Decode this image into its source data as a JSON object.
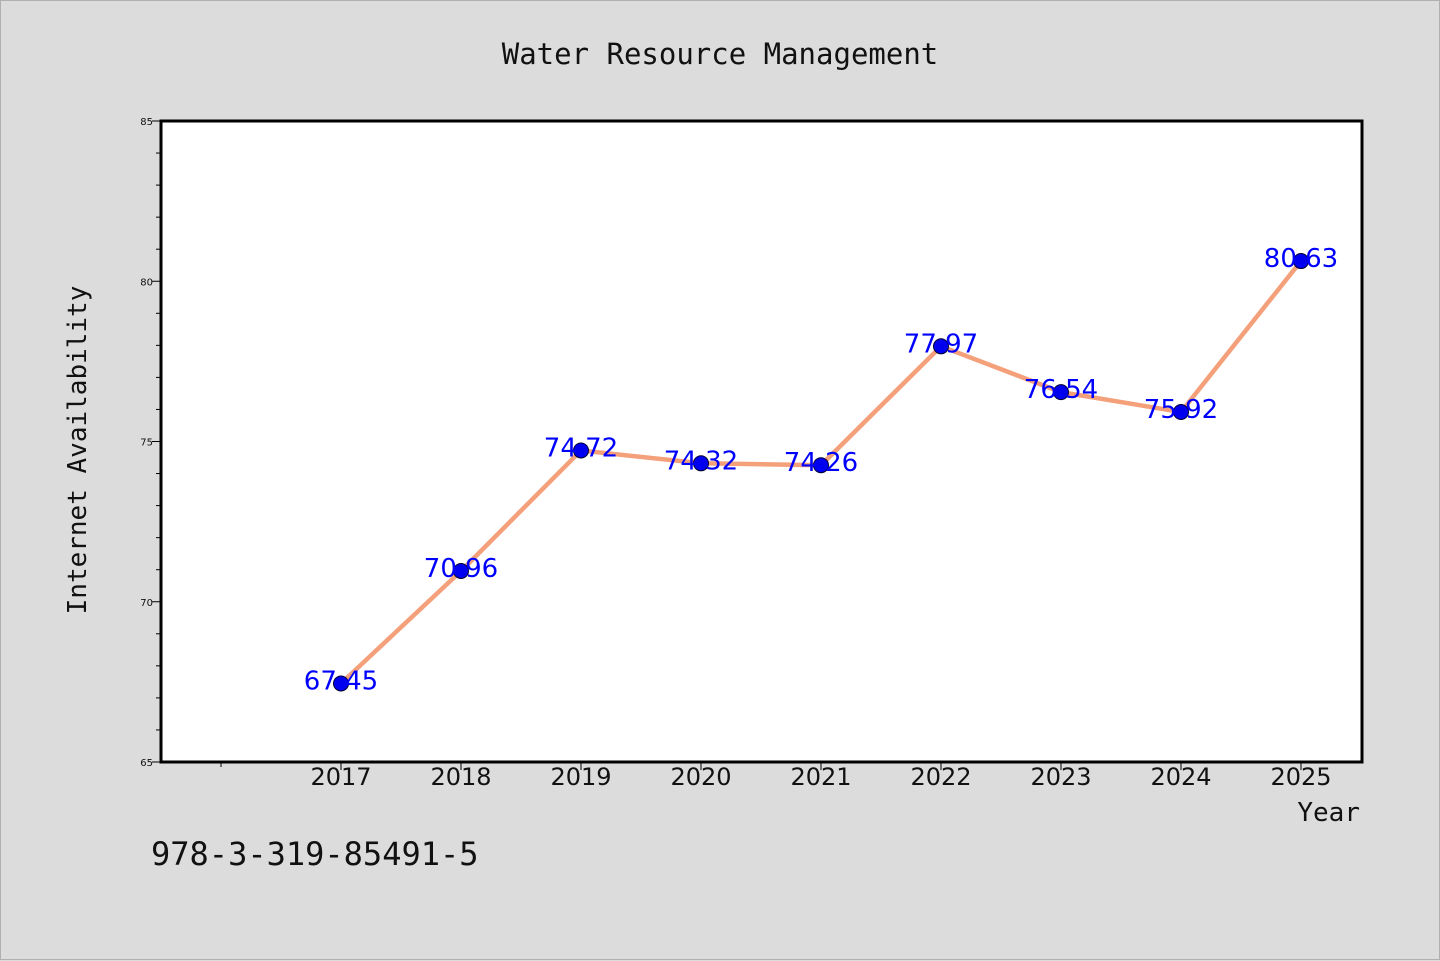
{
  "chart_data": {
    "type": "line",
    "title": "Water Resource Management",
    "xlabel": "Year",
    "ylabel": "Internet Availability",
    "categories": [
      "2017",
      "2018",
      "2019",
      "2020",
      "2021",
      "2022",
      "2023",
      "2024",
      "2025"
    ],
    "series": [
      {
        "values": [
          67.45,
          70.96,
          74.72,
          74.32,
          74.26,
          77.97,
          76.54,
          75.92,
          80.63
        ],
        "line_color": "#f4a07a",
        "marker_color": "#0000ee"
      }
    ],
    "ylim": [
      65,
      85
    ],
    "yticks": [
      "65",
      "70",
      "75",
      "80",
      "85"
    ],
    "data_labels": [
      "67.45",
      "70.96",
      "74.72",
      "74.32",
      "74.26",
      "77.97",
      "76.54",
      "75.92",
      "80.63"
    ],
    "grid": false,
    "label_color": "#0000ff"
  },
  "footer_text": "978-3-319-85491-5"
}
